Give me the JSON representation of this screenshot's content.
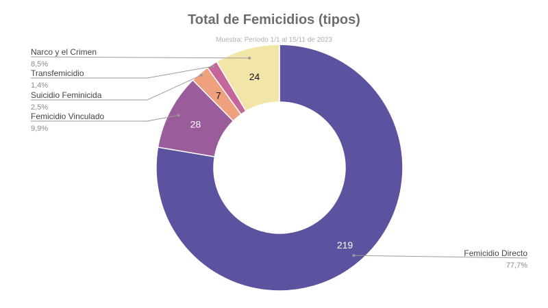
{
  "chart_data": {
    "type": "pie",
    "donut": true,
    "title": "Total de Femicidios (tipos)",
    "subtitle": "Muestra: Período 1/1 al 15/11 de 2023",
    "slices": [
      {
        "name": "Femicidio Directo",
        "value": 219,
        "percent": "77,7%",
        "color": "#5b539f",
        "label_color": "#ffffff"
      },
      {
        "name": "Femicidio Vinculado",
        "value": 28,
        "percent": "9,9%",
        "color": "#9a5c9b",
        "label_color": "#ffffff"
      },
      {
        "name": "Suicidio Feminicida",
        "value": 7,
        "percent": "2,5%",
        "color": "#eea07f",
        "label_color": "#111111"
      },
      {
        "name": "Transfemicidio",
        "value": 4,
        "percent": "1,4%",
        "color": "#c5669a",
        "label_color": "#ffffff"
      },
      {
        "name": "Narco y el Crimen",
        "value": 24,
        "percent": "8,5%",
        "color": "#f2e5a8",
        "label_color": "#111111"
      }
    ],
    "legend_position": "callouts"
  }
}
